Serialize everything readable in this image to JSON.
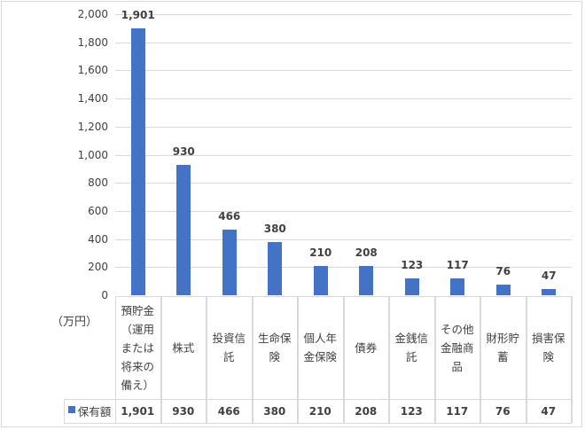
{
  "chart_data": {
    "type": "bar",
    "title": "",
    "xlabel": "",
    "ylabel": "（万円）",
    "unit_label": "（万円）",
    "ylim": [
      0,
      2000
    ],
    "yticks": [
      "2,000",
      "1,800",
      "1,600",
      "1,400",
      "1,200",
      "1,000",
      "800",
      "600",
      "400",
      "200",
      "0"
    ],
    "grid": true,
    "legend_position": "data-table",
    "categories": [
      "預貯金（運用または将来の備え）",
      "株式",
      "投資信託",
      "生命保険",
      "個人年金保険",
      "債券",
      "金銭信託",
      "その他金融商品",
      "財形貯蓄",
      "損害保険"
    ],
    "category_lines": [
      [
        "預貯金",
        "（運用",
        "または",
        "将来の",
        "備え）"
      ],
      [
        "株式"
      ],
      [
        "投資信",
        "託"
      ],
      [
        "生命保",
        "険"
      ],
      [
        "個人年",
        "金保険"
      ],
      [
        "債券"
      ],
      [
        "金銭信",
        "託"
      ],
      [
        "その他",
        "金融商",
        "品"
      ],
      [
        "財形貯",
        "蓄"
      ],
      [
        "損害保",
        "険"
      ]
    ],
    "series": [
      {
        "name": "保有額",
        "color": "#4472c4",
        "values": [
          1901,
          930,
          466,
          380,
          210,
          208,
          123,
          117,
          76,
          47
        ],
        "labels": [
          "1,901",
          "930",
          "466",
          "380",
          "210",
          "208",
          "123",
          "117",
          "76",
          "47"
        ]
      }
    ]
  }
}
